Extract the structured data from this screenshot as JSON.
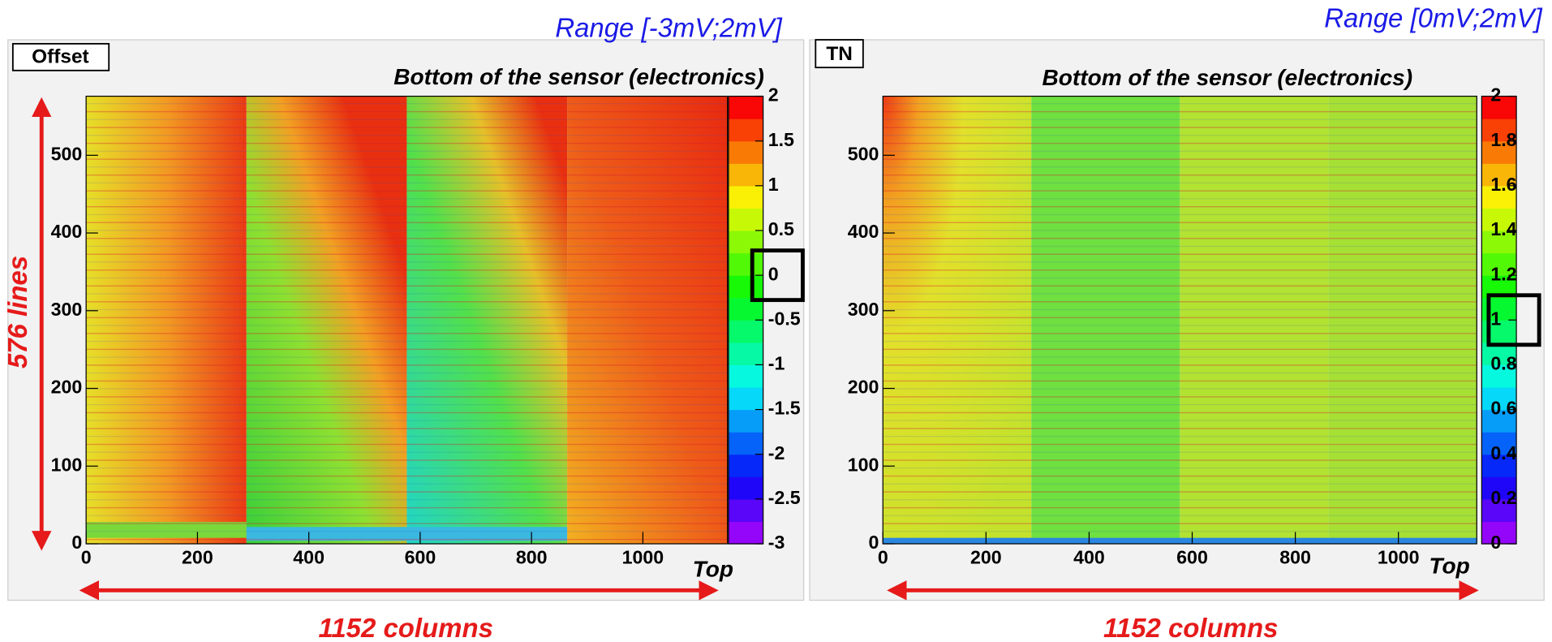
{
  "chart_data": [
    {
      "type": "heatmap",
      "label": "Offset",
      "title": "Bottom of the sensor (electronics)",
      "range_note": "Range [-3mV;2mV]",
      "xlim": [
        0,
        1152
      ],
      "ylim": [
        0,
        576
      ],
      "xticks": [
        0,
        200,
        400,
        600,
        800,
        1000
      ],
      "yticks": [
        0,
        100,
        200,
        300,
        400,
        500
      ],
      "x_axis_note": "Top",
      "zlim": [
        -3,
        2
      ],
      "zticks": [
        -3,
        -2.5,
        -2,
        -1.5,
        -1,
        -0.5,
        0,
        0.5,
        1,
        1.5,
        2
      ],
      "highlighted_ztick": 0,
      "annotations": [
        "576 lines",
        "1152 columns"
      ]
    },
    {
      "type": "heatmap",
      "label": "TN",
      "title": "Bottom of the sensor (electronics)",
      "range_note": "Range [0mV;2mV]",
      "xlim": [
        0,
        1152
      ],
      "ylim": [
        0,
        576
      ],
      "xticks": [
        0,
        200,
        400,
        600,
        800,
        1000
      ],
      "yticks": [
        0,
        100,
        200,
        300,
        400,
        500
      ],
      "x_axis_note": "Top",
      "zlim": [
        0,
        2
      ],
      "zticks": [
        0,
        0.2,
        0.4,
        0.6,
        0.8,
        1,
        1.2,
        1.4,
        1.6,
        1.8,
        2
      ],
      "highlighted_ztick": 1,
      "annotations": [
        "1152 columns"
      ]
    }
  ]
}
